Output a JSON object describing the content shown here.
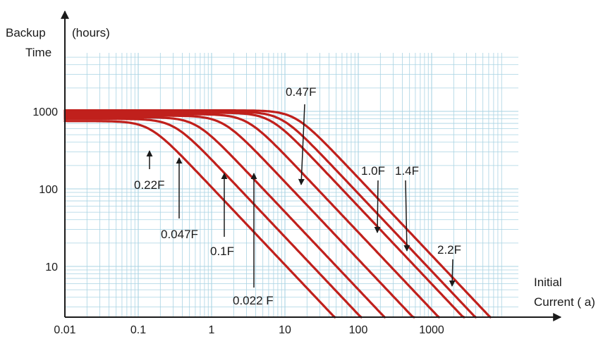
{
  "chart_data": {
    "type": "line",
    "title": "",
    "ylabel": "Backup Time",
    "yunit": "(hours)",
    "xlabel": "Initial Current ( a)",
    "xlabel_lines": [
      "Initial",
      "Current ( a)"
    ],
    "xscale": "log",
    "yscale": "log",
    "xlim": [
      0.01,
      12000
    ],
    "ylim": [
      2,
      10000
    ],
    "x_ticks": [
      0.01,
      0.1,
      1,
      10,
      100,
      1000
    ],
    "x_tick_labels": [
      "0.01",
      "0.1",
      "1",
      "10",
      "100",
      "1000"
    ],
    "y_ticks": [
      10,
      100,
      1000
    ],
    "y_tick_labels": [
      "10",
      "100",
      "1000"
    ],
    "grid": true,
    "curve_color": "#c0201c",
    "grid_color": "#a9d3e3",
    "series": [
      {
        "name": "0.022 F",
        "plateau": 750,
        "knee": 0.14,
        "end_x": 22
      },
      {
        "name": "0.047F",
        "plateau": 800,
        "knee": 0.3,
        "end_x": 45
      },
      {
        "name": "0.1F",
        "plateau": 840,
        "knee": 0.6,
        "end_x": 95
      },
      {
        "name": "0.22F",
        "plateau": 880,
        "knee": 1.4,
        "end_x": 210
      },
      {
        "name": "0.47F",
        "plateau": 920,
        "knee": 3.0,
        "end_x": 450
      },
      {
        "name": "1.0F",
        "plateau": 960,
        "knee": 6.2,
        "end_x": 950
      },
      {
        "name": "1.4F",
        "plateau": 990,
        "knee": 8.8,
        "end_x": 1350
      },
      {
        "name": "2.2F",
        "plateau": 1030,
        "knee": 13.5,
        "end_x": 2100
      }
    ],
    "annotations": [
      {
        "text": "0.22F",
        "pos": "upper"
      },
      {
        "text": "0.047F",
        "pos": "upper"
      },
      {
        "text": "0.1F",
        "pos": "upper"
      },
      {
        "text": "0.022 F",
        "pos": "upper"
      },
      {
        "text": "0.47F",
        "pos": "lower"
      },
      {
        "text": "1.0F",
        "pos": "lower"
      },
      {
        "text": "1.4F",
        "pos": "lower"
      },
      {
        "text": "2.2F",
        "pos": "lower"
      }
    ]
  }
}
